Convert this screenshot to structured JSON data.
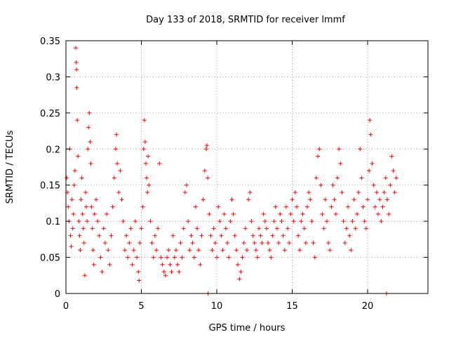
{
  "chart_data": {
    "type": "scatter",
    "title": "Day 133 of 2018, SRMTID for receiver lmmf",
    "xlabel": "GPS time / hours",
    "ylabel": "SRMTID / TECUs",
    "xlim": [
      0,
      24
    ],
    "ylim": [
      0,
      0.35
    ],
    "x_ticks": [
      0,
      5,
      10,
      15,
      20
    ],
    "x_tick_labels": [
      "0",
      "5",
      "10",
      "15",
      "20"
    ],
    "y_ticks": [
      0,
      0.05,
      0.1,
      0.15,
      0.2,
      0.25,
      0.3,
      0.35
    ],
    "y_tick_labels": [
      "0",
      "0.05",
      "0.1",
      "0.15",
      "0.2",
      "0.25",
      "0.3",
      "0.35"
    ],
    "grid": true,
    "marker": "plus",
    "color": "#ff0000",
    "series": [
      {
        "name": "SRMTID",
        "points": [
          [
            0.05,
            0.16
          ],
          [
            0.1,
            0.14
          ],
          [
            0.15,
            0.12
          ],
          [
            0.2,
            0.1
          ],
          [
            0.25,
            0.2
          ],
          [
            0.3,
            0.08
          ],
          [
            0.35,
            0.065
          ],
          [
            0.4,
            0.13
          ],
          [
            0.45,
            0.09
          ],
          [
            0.5,
            0.11
          ],
          [
            0.55,
            0.15
          ],
          [
            0.6,
            0.17
          ],
          [
            0.65,
            0.34
          ],
          [
            0.68,
            0.32
          ],
          [
            0.7,
            0.31
          ],
          [
            0.72,
            0.285
          ],
          [
            0.75,
            0.24
          ],
          [
            0.8,
            0.19
          ],
          [
            0.85,
            0.1
          ],
          [
            0.9,
            0.08
          ],
          [
            0.95,
            0.06
          ],
          [
            1.0,
            0.13
          ],
          [
            1.05,
            0.16
          ],
          [
            1.1,
            0.11
          ],
          [
            1.15,
            0.09
          ],
          [
            1.2,
            0.07
          ],
          [
            1.25,
            0.025
          ],
          [
            1.3,
            0.14
          ],
          [
            1.35,
            0.12
          ],
          [
            1.4,
            0.1
          ],
          [
            1.45,
            0.2
          ],
          [
            1.5,
            0.23
          ],
          [
            1.55,
            0.25
          ],
          [
            1.6,
            0.21
          ],
          [
            1.65,
            0.18
          ],
          [
            1.7,
            0.12
          ],
          [
            1.75,
            0.09
          ],
          [
            1.8,
            0.06
          ],
          [
            1.85,
            0.04
          ],
          [
            1.9,
            0.11
          ],
          [
            2.0,
            0.13
          ],
          [
            2.1,
            0.1
          ],
          [
            2.2,
            0.08
          ],
          [
            2.3,
            0.05
          ],
          [
            2.4,
            0.03
          ],
          [
            2.5,
            0.09
          ],
          [
            2.6,
            0.07
          ],
          [
            2.7,
            0.11
          ],
          [
            2.8,
            0.06
          ],
          [
            2.9,
            0.04
          ],
          [
            3.0,
            0.08
          ],
          [
            3.1,
            0.12
          ],
          [
            3.2,
            0.16
          ],
          [
            3.3,
            0.2
          ],
          [
            3.35,
            0.22
          ],
          [
            3.4,
            0.18
          ],
          [
            3.5,
            0.14
          ],
          [
            3.6,
            0.17
          ],
          [
            3.7,
            0.13
          ],
          [
            3.8,
            0.1
          ],
          [
            3.9,
            0.06
          ],
          [
            4.0,
            0.08
          ],
          [
            4.1,
            0.05
          ],
          [
            4.2,
            0.07
          ],
          [
            4.3,
            0.09
          ],
          [
            4.4,
            0.04
          ],
          [
            4.5,
            0.06
          ],
          [
            4.6,
            0.1
          ],
          [
            4.7,
            0.05
          ],
          [
            4.8,
            0.03
          ],
          [
            4.85,
            0.018
          ],
          [
            4.9,
            0.07
          ],
          [
            5.0,
            0.09
          ],
          [
            5.1,
            0.12
          ],
          [
            5.15,
            0.2
          ],
          [
            5.2,
            0.24
          ],
          [
            5.25,
            0.21
          ],
          [
            5.3,
            0.18
          ],
          [
            5.35,
            0.16
          ],
          [
            5.4,
            0.14
          ],
          [
            5.45,
            0.19
          ],
          [
            5.5,
            0.15
          ],
          [
            5.6,
            0.1
          ],
          [
            5.7,
            0.07
          ],
          [
            5.8,
            0.05
          ],
          [
            5.9,
            0.08
          ],
          [
            6.0,
            0.06
          ],
          [
            6.1,
            0.09
          ],
          [
            6.2,
            0.18
          ],
          [
            6.3,
            0.05
          ],
          [
            6.4,
            0.04
          ],
          [
            6.5,
            0.03
          ],
          [
            6.6,
            0.025
          ],
          [
            6.7,
            0.05
          ],
          [
            6.8,
            0.06
          ],
          [
            6.9,
            0.04
          ],
          [
            7.0,
            0.03
          ],
          [
            7.1,
            0.08
          ],
          [
            7.2,
            0.05
          ],
          [
            7.3,
            0.06
          ],
          [
            7.4,
            0.04
          ],
          [
            7.5,
            0.03
          ],
          [
            7.6,
            0.07
          ],
          [
            7.7,
            0.05
          ],
          [
            7.8,
            0.09
          ],
          [
            7.9,
            0.14
          ],
          [
            8.0,
            0.15
          ],
          [
            8.1,
            0.1
          ],
          [
            8.2,
            0.06
          ],
          [
            8.3,
            0.08
          ],
          [
            8.4,
            0.07
          ],
          [
            8.5,
            0.05
          ],
          [
            8.6,
            0.12
          ],
          [
            8.7,
            0.09
          ],
          [
            8.8,
            0.06
          ],
          [
            8.9,
            0.04
          ],
          [
            9.0,
            0.08
          ],
          [
            9.1,
            0.13
          ],
          [
            9.2,
            0.17
          ],
          [
            9.3,
            0.2
          ],
          [
            9.35,
            0.205
          ],
          [
            9.4,
            0.16
          ],
          [
            9.42,
            0.0
          ],
          [
            9.5,
            0.11
          ],
          [
            9.6,
            0.08
          ],
          [
            9.7,
            0.06
          ],
          [
            9.8,
            0.09
          ],
          [
            9.9,
            0.07
          ],
          [
            10.0,
            0.05
          ],
          [
            10.1,
            0.12
          ],
          [
            10.2,
            0.1
          ],
          [
            10.3,
            0.08
          ],
          [
            10.4,
            0.06
          ],
          [
            10.5,
            0.11
          ],
          [
            10.6,
            0.09
          ],
          [
            10.7,
            0.07
          ],
          [
            10.8,
            0.05
          ],
          [
            10.9,
            0.1
          ],
          [
            11.0,
            0.13
          ],
          [
            11.1,
            0.11
          ],
          [
            11.2,
            0.08
          ],
          [
            11.3,
            0.06
          ],
          [
            11.4,
            0.04
          ],
          [
            11.5,
            0.02
          ],
          [
            11.6,
            0.03
          ],
          [
            11.7,
            0.05
          ],
          [
            11.8,
            0.07
          ],
          [
            11.9,
            0.09
          ],
          [
            12.0,
            0.06
          ],
          [
            12.1,
            0.13
          ],
          [
            12.2,
            0.14
          ],
          [
            12.3,
            0.1
          ],
          [
            12.4,
            0.08
          ],
          [
            12.5,
            0.07
          ],
          [
            12.6,
            0.06
          ],
          [
            12.7,
            0.05
          ],
          [
            12.8,
            0.09
          ],
          [
            12.9,
            0.08
          ],
          [
            13.0,
            0.07
          ],
          [
            13.1,
            0.11
          ],
          [
            13.2,
            0.1
          ],
          [
            13.3,
            0.09
          ],
          [
            13.4,
            0.07
          ],
          [
            13.5,
            0.06
          ],
          [
            13.6,
            0.05
          ],
          [
            13.7,
            0.08
          ],
          [
            13.8,
            0.1
          ],
          [
            13.9,
            0.12
          ],
          [
            14.0,
            0.09
          ],
          [
            14.1,
            0.07
          ],
          [
            14.2,
            0.11
          ],
          [
            14.3,
            0.1
          ],
          [
            14.4,
            0.08
          ],
          [
            14.5,
            0.06
          ],
          [
            14.6,
            0.12
          ],
          [
            14.7,
            0.09
          ],
          [
            14.8,
            0.07
          ],
          [
            14.9,
            0.11
          ],
          [
            15.0,
            0.13
          ],
          [
            15.1,
            0.1
          ],
          [
            15.2,
            0.14
          ],
          [
            15.3,
            0.12
          ],
          [
            15.4,
            0.08
          ],
          [
            15.5,
            0.06
          ],
          [
            15.6,
            0.1
          ],
          [
            15.7,
            0.11
          ],
          [
            15.8,
            0.09
          ],
          [
            15.9,
            0.07
          ],
          [
            16.0,
            0.12
          ],
          [
            16.1,
            0.14
          ],
          [
            16.2,
            0.13
          ],
          [
            16.3,
            0.1
          ],
          [
            16.4,
            0.07
          ],
          [
            16.5,
            0.05
          ],
          [
            16.6,
            0.16
          ],
          [
            16.7,
            0.19
          ],
          [
            16.8,
            0.2
          ],
          [
            16.9,
            0.15
          ],
          [
            17.0,
            0.11
          ],
          [
            17.1,
            0.09
          ],
          [
            17.2,
            0.13
          ],
          [
            17.3,
            0.1
          ],
          [
            17.4,
            0.07
          ],
          [
            17.5,
            0.06
          ],
          [
            17.6,
            0.12
          ],
          [
            17.7,
            0.15
          ],
          [
            17.8,
            0.13
          ],
          [
            17.9,
            0.11
          ],
          [
            18.0,
            0.16
          ],
          [
            18.1,
            0.2
          ],
          [
            18.2,
            0.18
          ],
          [
            18.3,
            0.14
          ],
          [
            18.4,
            0.1
          ],
          [
            18.5,
            0.07
          ],
          [
            18.6,
            0.09
          ],
          [
            18.7,
            0.12
          ],
          [
            18.8,
            0.08
          ],
          [
            18.9,
            0.06
          ],
          [
            19.0,
            0.1
          ],
          [
            19.1,
            0.13
          ],
          [
            19.2,
            0.09
          ],
          [
            19.3,
            0.11
          ],
          [
            19.4,
            0.14
          ],
          [
            19.5,
            0.2
          ],
          [
            19.6,
            0.16
          ],
          [
            19.7,
            0.12
          ],
          [
            19.8,
            0.1
          ],
          [
            19.9,
            0.09
          ],
          [
            20.0,
            0.13
          ],
          [
            20.1,
            0.17
          ],
          [
            20.15,
            0.24
          ],
          [
            20.2,
            0.22
          ],
          [
            20.3,
            0.18
          ],
          [
            20.4,
            0.15
          ],
          [
            20.5,
            0.12
          ],
          [
            20.6,
            0.14
          ],
          [
            20.7,
            0.11
          ],
          [
            20.8,
            0.13
          ],
          [
            20.9,
            0.1
          ],
          [
            21.0,
            0.12
          ],
          [
            21.1,
            0.14
          ],
          [
            21.2,
            0.16
          ],
          [
            21.25,
            0.0
          ],
          [
            21.3,
            0.13
          ],
          [
            21.4,
            0.11
          ],
          [
            21.5,
            0.15
          ],
          [
            21.6,
            0.19
          ],
          [
            21.7,
            0.17
          ],
          [
            21.8,
            0.14
          ],
          [
            21.9,
            0.16
          ]
        ]
      }
    ]
  }
}
